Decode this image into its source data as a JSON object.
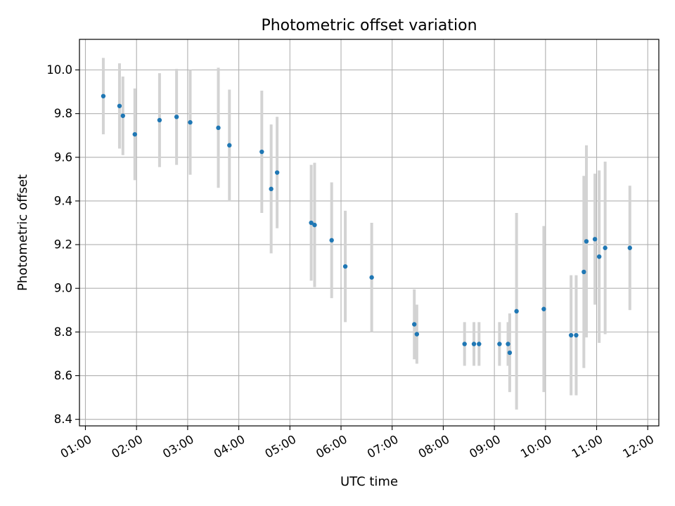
{
  "chart_data": {
    "type": "scatter",
    "title": "Photometric offset variation",
    "xlabel": "UTC time",
    "ylabel": "Photometric offset",
    "x_ticks": [
      "01:00",
      "02:00",
      "03:00",
      "04:00",
      "05:00",
      "06:00",
      "07:00",
      "08:00",
      "09:00",
      "10:00",
      "11:00",
      "12:00"
    ],
    "y_ticks": [
      "8.4",
      "8.6",
      "8.8",
      "9.0",
      "9.2",
      "9.4",
      "9.6",
      "9.8",
      "10.0"
    ],
    "xlim": [
      "00:53",
      "12:13"
    ],
    "ylim": [
      8.37,
      10.14
    ],
    "grid": true,
    "colors": {
      "points": "#1f77b4",
      "errorbars": "#d3d3d3",
      "grid": "#b0b0b0"
    },
    "points": [
      {
        "x": "01:21",
        "y": 9.88,
        "err": 0.175
      },
      {
        "x": "01:40",
        "y": 9.835,
        "err": 0.195
      },
      {
        "x": "01:44",
        "y": 9.79,
        "err": 0.18
      },
      {
        "x": "01:58",
        "y": 9.705,
        "err": 0.21
      },
      {
        "x": "02:27",
        "y": 9.77,
        "err": 0.215
      },
      {
        "x": "02:47",
        "y": 9.785,
        "err": 0.22
      },
      {
        "x": "03:03",
        "y": 9.76,
        "err": 0.24
      },
      {
        "x": "03:36",
        "y": 9.735,
        "err": 0.275
      },
      {
        "x": "03:49",
        "y": 9.655,
        "err": 0.255
      },
      {
        "x": "04:27",
        "y": 9.625,
        "err": 0.28
      },
      {
        "x": "04:38",
        "y": 9.455,
        "err": 0.295
      },
      {
        "x": "04:45",
        "y": 9.53,
        "err": 0.255
      },
      {
        "x": "05:25",
        "y": 9.3,
        "err": 0.265
      },
      {
        "x": "05:29",
        "y": 9.29,
        "err": 0.285
      },
      {
        "x": "05:49",
        "y": 9.22,
        "err": 0.265
      },
      {
        "x": "06:05",
        "y": 9.1,
        "err": 0.255
      },
      {
        "x": "06:36",
        "y": 9.05,
        "err": 0.25
      },
      {
        "x": "07:26",
        "y": 8.835,
        "err": 0.16
      },
      {
        "x": "07:29",
        "y": 8.79,
        "err": 0.135
      },
      {
        "x": "08:25",
        "y": 8.745,
        "err": 0.1
      },
      {
        "x": "08:36",
        "y": 8.745,
        "err": 0.1
      },
      {
        "x": "08:42",
        "y": 8.745,
        "err": 0.1
      },
      {
        "x": "09:06",
        "y": 8.745,
        "err": 0.1
      },
      {
        "x": "09:16",
        "y": 8.745,
        "err": 0.1
      },
      {
        "x": "09:18",
        "y": 8.705,
        "err": 0.18
      },
      {
        "x": "09:26",
        "y": 8.895,
        "err": 0.45
      },
      {
        "x": "09:58",
        "y": 8.905,
        "err": 0.38
      },
      {
        "x": "10:30",
        "y": 8.785,
        "err": 0.275
      },
      {
        "x": "10:36",
        "y": 8.785,
        "err": 0.275
      },
      {
        "x": "10:45",
        "y": 9.075,
        "err": 0.44
      },
      {
        "x": "10:48",
        "y": 9.215,
        "err": 0.44
      },
      {
        "x": "10:58",
        "y": 9.225,
        "err": 0.3
      },
      {
        "x": "11:03",
        "y": 9.145,
        "err": 0.395
      },
      {
        "x": "11:10",
        "y": 9.185,
        "err": 0.395
      },
      {
        "x": "11:39",
        "y": 9.185,
        "err": 0.285
      }
    ]
  }
}
